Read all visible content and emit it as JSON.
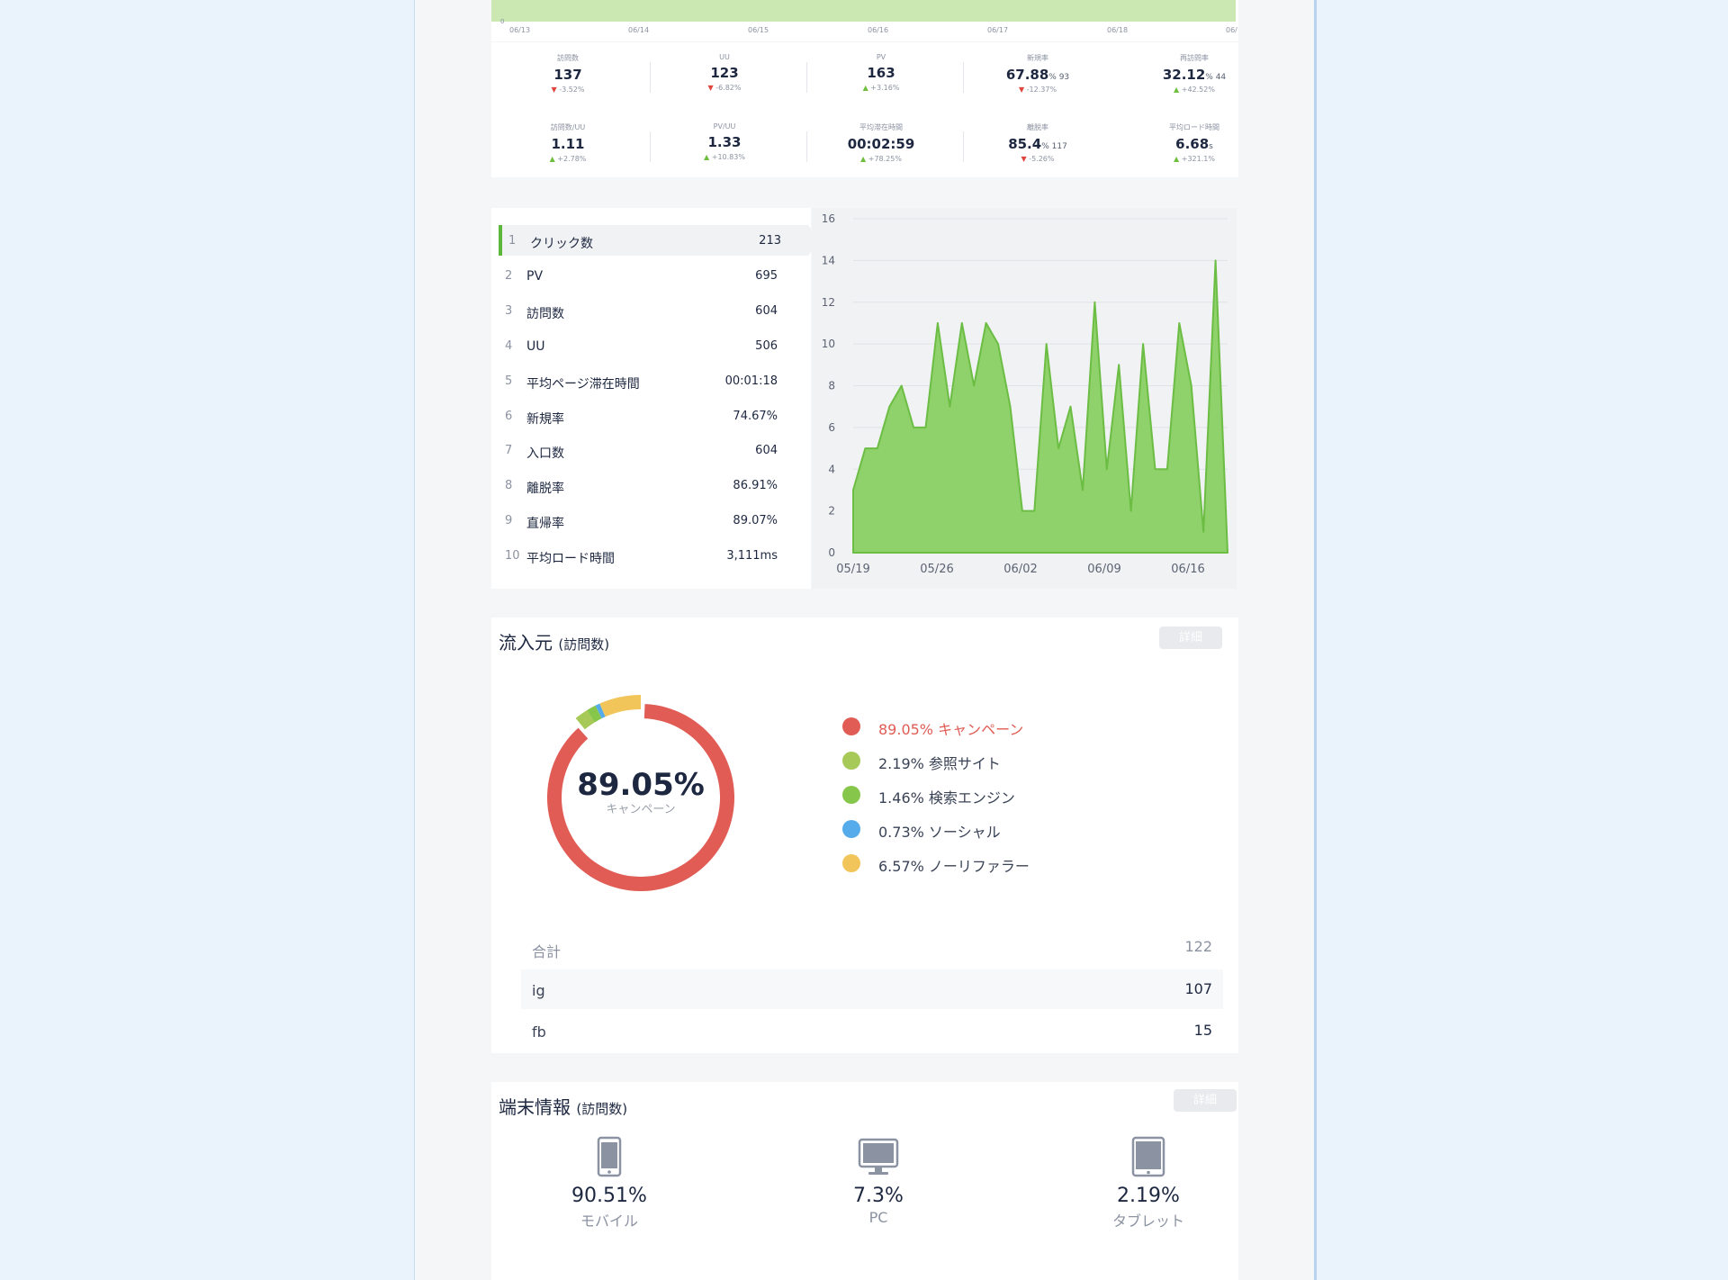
{
  "mini_chart": {
    "zero": "0",
    "ticks": [
      "06/13",
      "06/14",
      "06/15",
      "06/16",
      "06/17",
      "06/18",
      "06/"
    ]
  },
  "stats": [
    {
      "label": "訪問数",
      "value": "137",
      "unit": "",
      "change": "-3.52%",
      "trend": "down"
    },
    {
      "label": "UU",
      "value": "123",
      "unit": "",
      "change": "-6.82%",
      "trend": "down"
    },
    {
      "label": "PV",
      "value": "163",
      "unit": "",
      "change": "+3.16%",
      "trend": "up"
    },
    {
      "label": "新規率",
      "value": "67.88",
      "unit": "% 93",
      "change": "-12.37%",
      "trend": "down"
    },
    {
      "label": "再訪問率",
      "value": "32.12",
      "unit": "% 44",
      "change": "+42.52%",
      "trend": "up"
    },
    {
      "label": "訪問数/UU",
      "value": "1.11",
      "unit": "",
      "change": "+2.78%",
      "trend": "up"
    },
    {
      "label": "PV/UU",
      "value": "1.33",
      "unit": "",
      "change": "+10.83%",
      "trend": "up"
    },
    {
      "label": "平均滞在時間",
      "value": "00:02:59",
      "unit": "",
      "change": "+78.25%",
      "trend": "up"
    },
    {
      "label": "離脱率",
      "value": "85.4",
      "unit": "% 117",
      "change": "-5.26%",
      "trend": "down"
    },
    {
      "label": "平均ロード時間",
      "value": "6.68",
      "unit": "s",
      "change": "+321.1%",
      "trend": "up"
    }
  ],
  "ranking": [
    {
      "num": "1",
      "label": "クリック数",
      "value": "213"
    },
    {
      "num": "2",
      "label": "PV",
      "value": "695"
    },
    {
      "num": "3",
      "label": "訪問数",
      "value": "604"
    },
    {
      "num": "4",
      "label": "UU",
      "value": "506"
    },
    {
      "num": "5",
      "label": "平均ページ滞在時間",
      "value": "00:01:18"
    },
    {
      "num": "6",
      "label": "新規率",
      "value": "74.67%"
    },
    {
      "num": "7",
      "label": "入口数",
      "value": "604"
    },
    {
      "num": "8",
      "label": "離脱率",
      "value": "86.91%"
    },
    {
      "num": "9",
      "label": "直帰率",
      "value": "89.07%"
    },
    {
      "num": "10",
      "label": "平均ロード時間",
      "value": "3,111ms"
    }
  ],
  "chart_data": {
    "type": "area",
    "xlabels": [
      "05/19",
      "05/26",
      "06/02",
      "06/09",
      "06/16"
    ],
    "ylim": [
      0,
      16
    ],
    "yticks": [
      0,
      2,
      4,
      6,
      8,
      10,
      12,
      14,
      16
    ],
    "grid": true,
    "color": "#8fd16a",
    "series": [
      {
        "values": [
          3,
          5,
          5,
          7,
          8,
          6,
          6,
          11,
          7,
          11,
          8,
          11,
          10,
          7,
          2,
          2,
          10,
          5,
          7,
          3,
          12,
          4,
          9,
          2,
          10,
          4,
          4,
          11,
          8,
          1,
          14,
          0
        ]
      }
    ]
  },
  "sources": {
    "title": "流入元",
    "subtitle": "(訪問数)",
    "detail_label": "詳細",
    "center_pct": "89.05%",
    "center_label": "キャンペーン",
    "legend": [
      {
        "pct": "89.05%",
        "label": "キャンペーン",
        "color": "#e05c55",
        "value": 89.05
      },
      {
        "pct": "2.19%",
        "label": "参照サイト",
        "color": "#a7c957",
        "value": 2.19
      },
      {
        "pct": "1.46%",
        "label": "検索エンジン",
        "color": "#86c64a",
        "value": 1.46
      },
      {
        "pct": "0.73%",
        "label": "ソーシャル",
        "color": "#56acea",
        "value": 0.73
      },
      {
        "pct": "6.57%",
        "label": "ノーリファラー",
        "color": "#f2c55a",
        "value": 6.57
      }
    ],
    "total_label": "合計",
    "total_value": "122",
    "rows": [
      {
        "name": "ig",
        "value": "107"
      },
      {
        "name": "fb",
        "value": "15"
      }
    ]
  },
  "devices": {
    "title": "端末情報",
    "subtitle": "(訪問数)",
    "detail_label": "詳細",
    "items": [
      {
        "pct": "90.51%",
        "label": "モバイル",
        "icon": "mobile-icon"
      },
      {
        "pct": "7.3%",
        "label": "PC",
        "icon": "desktop-icon"
      },
      {
        "pct": "2.19%",
        "label": "タブレット",
        "icon": "tablet-icon"
      }
    ]
  }
}
